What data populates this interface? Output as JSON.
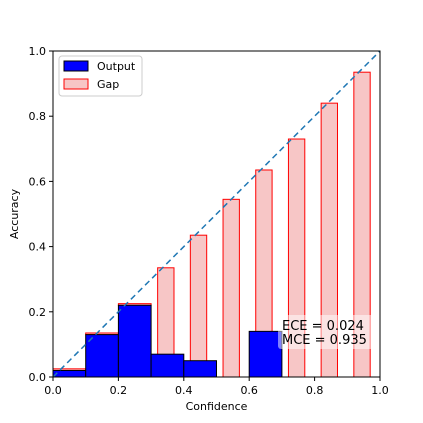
{
  "chart_data": {
    "type": "bar",
    "xlabel": "Confidence",
    "ylabel": "Accuracy",
    "xlim": [
      0.0,
      1.0
    ],
    "ylim": [
      0.0,
      1.0
    ],
    "xticks": [
      "0.0",
      "0.2",
      "0.4",
      "0.6",
      "0.8",
      "1.0"
    ],
    "yticks": [
      "0.0",
      "0.2",
      "0.4",
      "0.6",
      "0.8",
      "1.0"
    ],
    "legend_position": "top-left",
    "grid": false,
    "series": [
      {
        "name": "Output",
        "color": "#0000ff",
        "edge": "#000000",
        "bins": [
          {
            "x0": 0.0,
            "x1": 0.1,
            "value": 0.02
          },
          {
            "x0": 0.1,
            "x1": 0.2,
            "value": 0.13
          },
          {
            "x0": 0.2,
            "x1": 0.3,
            "value": 0.22
          },
          {
            "x0": 0.3,
            "x1": 0.4,
            "value": 0.07
          },
          {
            "x0": 0.4,
            "x1": 0.5,
            "value": 0.05
          },
          {
            "x0": 0.6,
            "x1": 0.7,
            "value": 0.14
          }
        ]
      },
      {
        "name": "Gap",
        "color": "#f7c6c6",
        "edge": "#ff0000",
        "bins": [
          {
            "x0": 0.0,
            "x1": 0.1,
            "bottom": 0.02,
            "top": 0.025
          },
          {
            "x0": 0.1,
            "x1": 0.2,
            "bottom": 0.13,
            "top": 0.135
          },
          {
            "x0": 0.2,
            "x1": 0.3,
            "bottom": 0.22,
            "top": 0.225
          },
          {
            "x0": 0.32,
            "x1": 0.37,
            "bottom": 0.0,
            "top": 0.335
          },
          {
            "x0": 0.42,
            "x1": 0.47,
            "bottom": 0.0,
            "top": 0.435
          },
          {
            "x0": 0.52,
            "x1": 0.57,
            "bottom": 0.0,
            "top": 0.545
          },
          {
            "x0": 0.62,
            "x1": 0.67,
            "bottom": 0.0,
            "top": 0.635
          },
          {
            "x0": 0.72,
            "x1": 0.77,
            "bottom": 0.0,
            "top": 0.73
          },
          {
            "x0": 0.82,
            "x1": 0.87,
            "bottom": 0.0,
            "top": 0.84
          },
          {
            "x0": 0.92,
            "x1": 0.97,
            "bottom": 0.0,
            "top": 0.935
          }
        ]
      }
    ],
    "reference_line": {
      "from": [
        0.0,
        0.0
      ],
      "to": [
        1.0,
        1.0
      ],
      "color": "#1f77b4",
      "style": "dashed"
    },
    "annotations": [
      "ECE = 0.024",
      "MCE = 0.935"
    ]
  }
}
